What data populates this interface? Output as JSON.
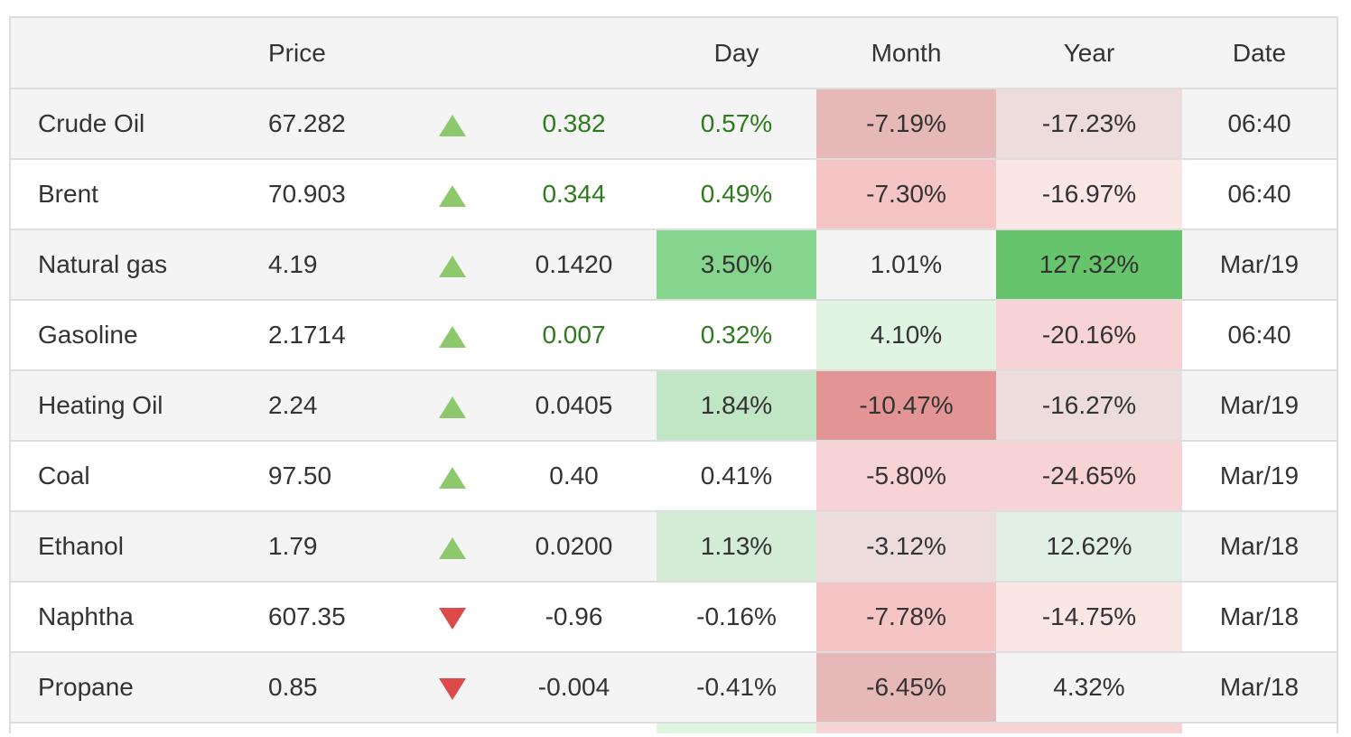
{
  "header": {
    "name": "",
    "price": "Price",
    "arrow": "",
    "change": "",
    "day": "Day",
    "month": "Month",
    "year": "Year",
    "date": "Date"
  },
  "rows": [
    {
      "name": "Crude Oil",
      "price": "67.282",
      "direction": "up",
      "change": "0.382",
      "day": "0.57%",
      "month": "-7.19%",
      "year": "-17.23%",
      "date": "06:40",
      "change_color": "#2e7a1e",
      "day_color": "#2e7a1e",
      "day_bg": "#f4f4f4",
      "month_bg": "#e6b8b8",
      "year_bg": "#eddcdc"
    },
    {
      "name": "Brent",
      "price": "70.903",
      "direction": "up",
      "change": "0.344",
      "day": "0.49%",
      "month": "-7.30%",
      "year": "-16.97%",
      "date": "06:40",
      "change_color": "#2e7a1e",
      "day_color": "#2e7a1e",
      "day_bg": "#ffffff",
      "month_bg": "#f5c4c4",
      "year_bg": "#fbe6e6"
    },
    {
      "name": "Natural gas",
      "price": "4.19",
      "direction": "up",
      "change": "0.1420",
      "day": "3.50%",
      "month": "1.01%",
      "year": "127.32%",
      "date": "Mar/19",
      "change_color": "#333333",
      "day_color": "#333333",
      "day_bg": "#86d58e",
      "month_bg": "#f4f4f4",
      "year_bg": "#66c56c"
    },
    {
      "name": "Gasoline",
      "price": "2.1714",
      "direction": "up",
      "change": "0.007",
      "day": "0.32%",
      "month": "4.10%",
      "year": "-20.16%",
      "date": "06:40",
      "change_color": "#2e7a1e",
      "day_color": "#2e7a1e",
      "day_bg": "#ffffff",
      "month_bg": "#dff5e1",
      "year_bg": "#f8d3d6"
    },
    {
      "name": "Heating Oil",
      "price": "2.24",
      "direction": "up",
      "change": "0.0405",
      "day": "1.84%",
      "month": "-10.47%",
      "year": "-16.27%",
      "date": "Mar/19",
      "change_color": "#333333",
      "day_color": "#333333",
      "day_bg": "#c1e6c6",
      "month_bg": "#e39494",
      "year_bg": "#eddcdc"
    },
    {
      "name": "Coal",
      "price": "97.50",
      "direction": "up",
      "change": "0.40",
      "day": "0.41%",
      "month": "-5.80%",
      "year": "-24.65%",
      "date": "Mar/19",
      "change_color": "#333333",
      "day_color": "#333333",
      "day_bg": "#ffffff",
      "month_bg": "#f8d3d6",
      "year_bg": "#f8d3d6"
    },
    {
      "name": "Ethanol",
      "price": "1.79",
      "direction": "up",
      "change": "0.0200",
      "day": "1.13%",
      "month": "-3.12%",
      "year": "12.62%",
      "date": "Mar/18",
      "change_color": "#333333",
      "day_color": "#333333",
      "day_bg": "#d2ecd6",
      "month_bg": "#eddcdc",
      "year_bg": "#e2efe4"
    },
    {
      "name": "Naphtha",
      "price": "607.35",
      "direction": "down",
      "change": "-0.96",
      "day": "-0.16%",
      "month": "-7.78%",
      "year": "-14.75%",
      "date": "Mar/18",
      "change_color": "#333333",
      "day_color": "#333333",
      "day_bg": "#ffffff",
      "month_bg": "#f5c4c4",
      "year_bg": "#fbe6e6"
    },
    {
      "name": "Propane",
      "price": "0.85",
      "direction": "down",
      "change": "-0.004",
      "day": "-0.41%",
      "month": "-6.45%",
      "year": "4.32%",
      "date": "Mar/18",
      "change_color": "#333333",
      "day_color": "#333333",
      "day_bg": "#f4f4f4",
      "month_bg": "#e6b8b8",
      "year_bg": "#f4f4f4"
    }
  ],
  "partial_row": {
    "day_bg": "#dff5e1",
    "month_bg": "#f8d3d6",
    "year_bg": "#f8d3d6"
  },
  "colors": {
    "up_arrow": "#8dc96c",
    "down_arrow": "#dd4a4a",
    "positive_text": "#2e7a1e"
  }
}
